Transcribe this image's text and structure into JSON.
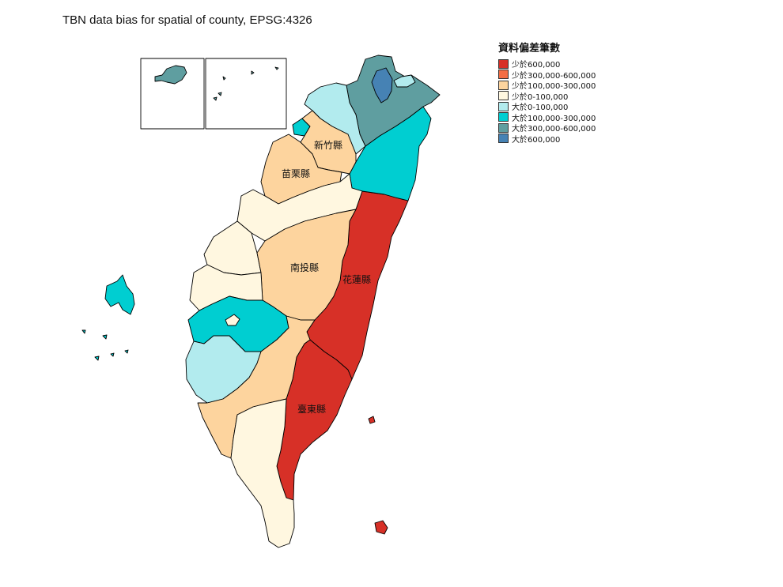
{
  "map": {
    "title": "TBN data bias for spatial of county, EPSG:4326"
  },
  "legend": {
    "title": "資料偏差筆數",
    "classes": [
      {
        "label": "少於600,000",
        "color": "#d73027"
      },
      {
        "label": "少於300,000-600,000",
        "color": "#f46d43"
      },
      {
        "label": "少於100,000-300,000",
        "color": "#fdd49e"
      },
      {
        "label": "少於0-100,000",
        "color": "#fff7e0"
      },
      {
        "label": "大於0-100,000",
        "color": "#b2ebee"
      },
      {
        "label": "大於100,000-300,000",
        "color": "#00ced1"
      },
      {
        "label": "大於300,000-600,000",
        "color": "#5f9ea0"
      },
      {
        "label": "大於600,000",
        "color": "#4682b4"
      }
    ]
  },
  "county_labels": {
    "hsinchu": "新竹縣",
    "miaoli": "苗栗縣",
    "nantou": "南投縣",
    "hualien": "花蓮縣",
    "taitung": "臺東縣"
  }
}
